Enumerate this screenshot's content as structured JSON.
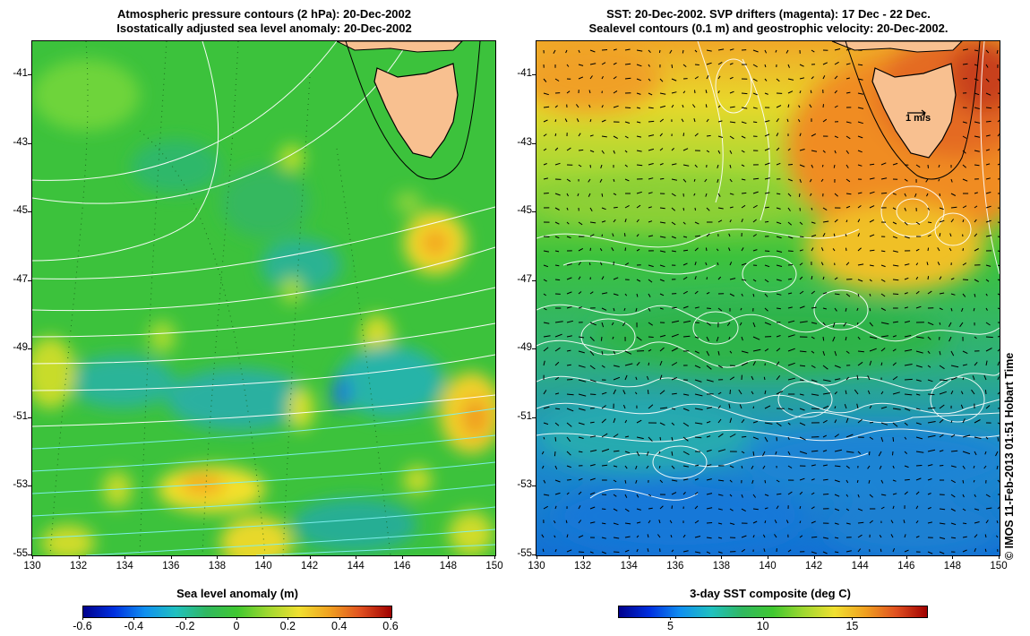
{
  "left_panel": {
    "title_line1": "Atmospheric pressure contours (2 hPa): 20-Dec-2002",
    "title_line2": "Isostatically adjusted sea level anomaly: 20-Dec-2002",
    "colorbar_title": "Sea level anomaly (m)",
    "colorbar_ticks": [
      "-0.6",
      "-0.4",
      "-0.2",
      "0",
      "0.2",
      "0.4",
      "0.6"
    ]
  },
  "right_panel": {
    "title_line1": "SST: 20-Dec-2002. SVP drifters (magenta): 17 Dec - 22 Dec.",
    "title_line2": "Sealevel contours (0.1 m) and geostrophic velocity: 20-Dec-2002.",
    "colorbar_title": "3-day SST composite (deg C)",
    "colorbar_ticks": [
      "5",
      "10",
      "15"
    ],
    "velocity_scale_label": "1 m/s"
  },
  "axes": {
    "lat_labels": [
      "-41",
      "-43",
      "-45",
      "-47",
      "-49",
      "-51",
      "-53",
      "-55"
    ],
    "lon_labels": [
      "130",
      "132",
      "134",
      "136",
      "138",
      "140",
      "142",
      "144",
      "146",
      "148",
      "150"
    ]
  },
  "credit": "© IMOS 11-Feb-2013 01:51 Hobart Time",
  "colors": {
    "land": "#f8c090",
    "coast": "#000000",
    "contour": "#ffffff"
  }
}
